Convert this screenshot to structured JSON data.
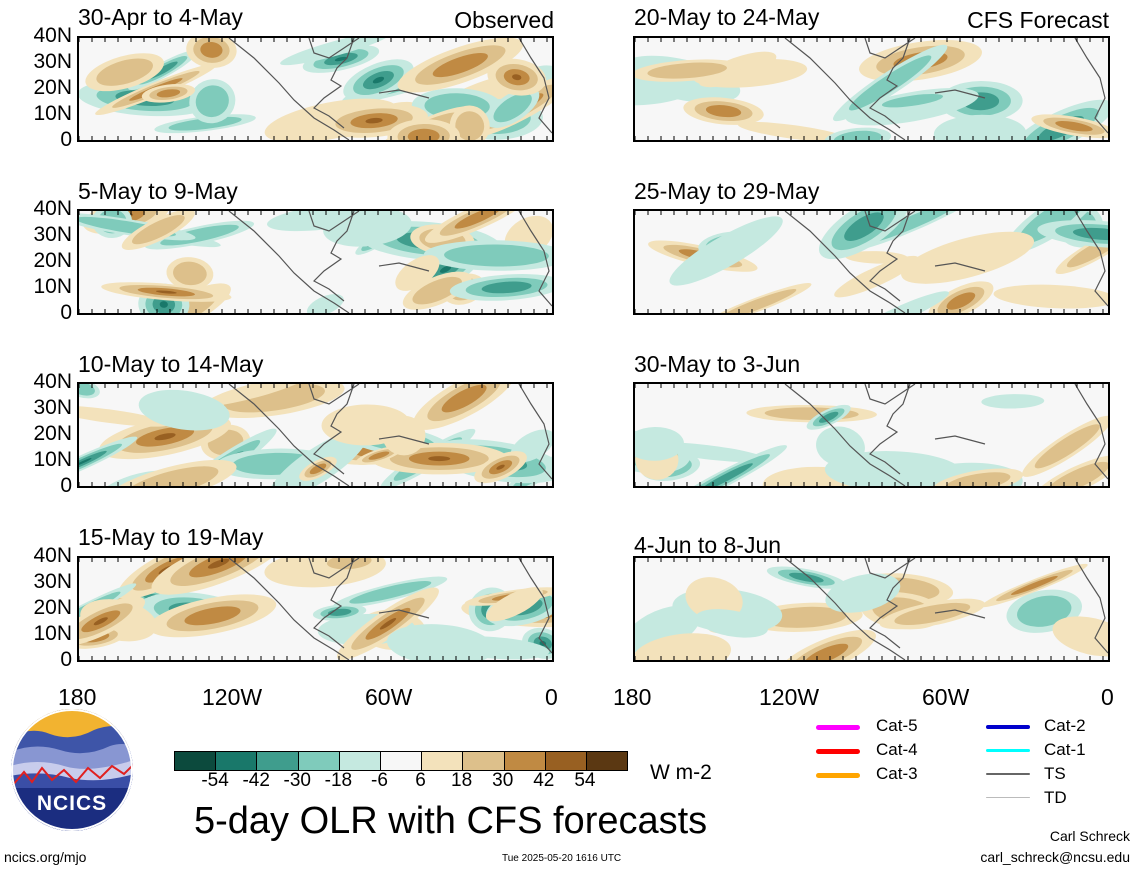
{
  "columns": {
    "left_tag": "Observed",
    "right_tag": "CFS Forecast"
  },
  "panels": [
    {
      "title": "30-Apr to 4-May"
    },
    {
      "title": "5-May to 9-May"
    },
    {
      "title": "10-May to 14-May"
    },
    {
      "title": "15-May to 19-May"
    },
    {
      "title": "20-May to 24-May"
    },
    {
      "title": "25-May to 29-May"
    },
    {
      "title": "30-May to 3-Jun"
    },
    {
      "title": "4-Jun to 8-Jun"
    }
  ],
  "lat_labels": [
    "40N",
    "30N",
    "20N",
    "10N",
    "0"
  ],
  "lon_labels": [
    "180",
    "120W",
    "60W",
    "0"
  ],
  "colorbar": {
    "colors": [
      "#0c4a3d",
      "#19786a",
      "#3f9d8d",
      "#7fcbbb",
      "#c5e9e0",
      "#f7f7f7",
      "#f3e2bb",
      "#ddc08b",
      "#c08a43",
      "#986022",
      "#5b3812"
    ],
    "labels": [
      "-54",
      "-42",
      "-30",
      "-18",
      "-6",
      "6",
      "18",
      "30",
      "42",
      "54"
    ],
    "units": "W m-2"
  },
  "legend": [
    {
      "label": "Cat-5",
      "color": "#ff00ff"
    },
    {
      "label": "Cat-4",
      "color": "#ff0000"
    },
    {
      "label": "Cat-3",
      "color": "#ffa500"
    },
    {
      "label": "Cat-2",
      "color": "#0000cc"
    },
    {
      "label": "Cat-1",
      "color": "#00ffff"
    },
    {
      "label": "TS",
      "color": "#666666"
    },
    {
      "label": "TD",
      "color": "#bbbbbb"
    }
  ],
  "logo": {
    "text": "NCICS"
  },
  "footer": {
    "title": "5-day OLR with CFS forecasts",
    "url": "ncics.org/mjo",
    "timestamp": "Tue 2025-05-20 1616 UTC",
    "author": "Carl Schreck",
    "email": "carl_schreck@ncsu.edu"
  }
}
